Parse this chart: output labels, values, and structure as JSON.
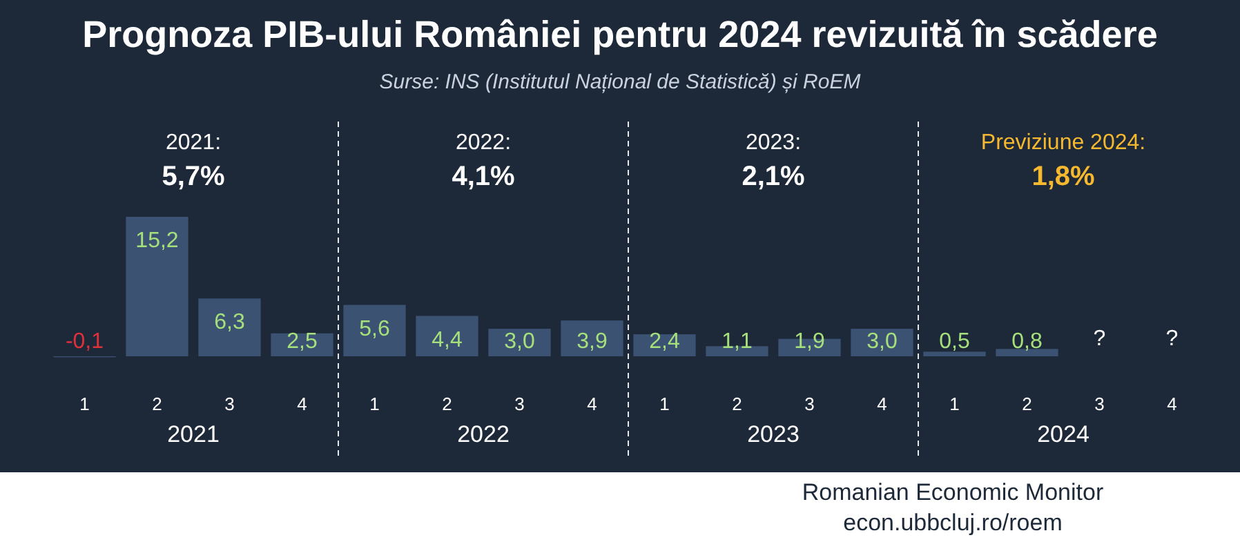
{
  "chart_data": {
    "type": "bar",
    "title": "Prognoza PIB-ului României pentru 2024 revizuită în scădere",
    "subtitle": "Surse:  INS (Institutul Național de Statistică) și RoEM",
    "categories": [
      "1",
      "2",
      "3",
      "4",
      "1",
      "2",
      "3",
      "4",
      "1",
      "2",
      "3",
      "4",
      "1",
      "2",
      "3",
      "4"
    ],
    "values": [
      -0.1,
      15.2,
      6.3,
      2.5,
      5.6,
      4.4,
      3.0,
      3.9,
      2.4,
      1.1,
      1.9,
      3.0,
      0.5,
      0.8,
      null,
      null
    ],
    "value_labels": [
      "-0,1",
      "15,2",
      "6,3",
      "2,5",
      "5,6",
      "4,4",
      "3,0",
      "3,9",
      "2,4",
      "1,1",
      "1,9",
      "3,0",
      "0,5",
      "0,8",
      "?",
      "?"
    ],
    "color": "#3b5272",
    "annotations": [
      "2021:",
      "5,7%",
      "2022:",
      "4,1%",
      "2023:",
      "2,1%",
      "Previziune 2024:",
      "1,8%",
      "2021",
      "2022",
      "2023",
      "2024",
      "Romanian Economic Monitor",
      "econ.ubbcluj.ro/roem"
    ]
  }
}
